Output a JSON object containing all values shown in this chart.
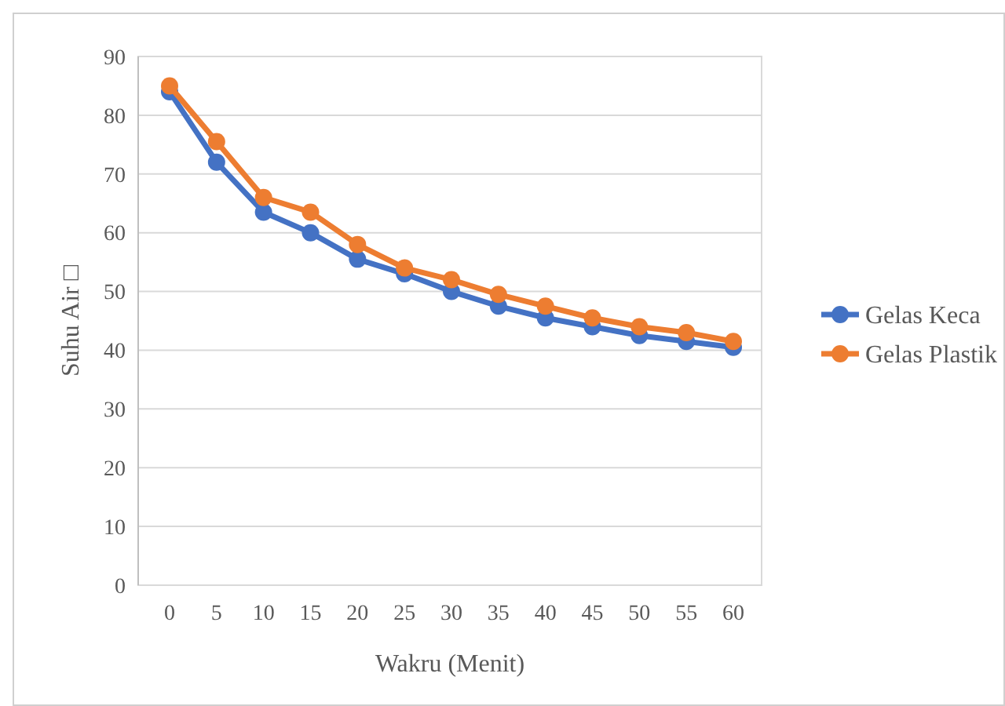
{
  "chart_data": {
    "type": "line",
    "xlabel": "Wakru (Menit)",
    "ylabel": "Suhu Air □",
    "categories": [
      "0",
      "5",
      "10",
      "15",
      "20",
      "25",
      "30",
      "35",
      "40",
      "45",
      "50",
      "55",
      "60"
    ],
    "series": [
      {
        "name": "Gelas Keca",
        "color": "#4472c4",
        "values": [
          84,
          72,
          63.5,
          60,
          55.5,
          53,
          50,
          47.5,
          45.5,
          44,
          42.5,
          41.5,
          40.5
        ]
      },
      {
        "name": "Gelas Plastik",
        "color": "#ed7d31",
        "values": [
          85,
          75.5,
          66,
          63.5,
          58,
          54,
          52,
          49.5,
          47.5,
          45.5,
          44,
          43,
          41.5
        ]
      }
    ],
    "ylim": [
      0,
      90
    ],
    "yticks": [
      0,
      10,
      20,
      30,
      40,
      50,
      60,
      70,
      80,
      90
    ],
    "grid": "y",
    "legend": "right",
    "marker": "circle",
    "line_style": "solid"
  }
}
